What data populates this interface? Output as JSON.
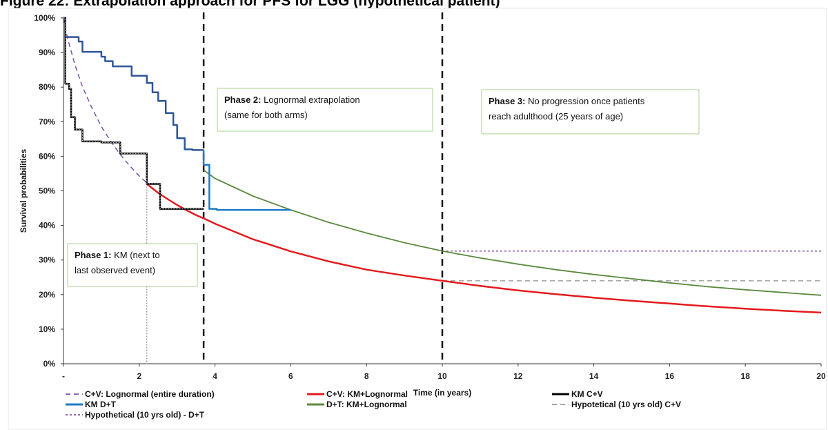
{
  "figure_title": "Figure 22: Extrapolation approach for PFS for LGG (hypothetical patient)",
  "chart_data": {
    "type": "line",
    "xlabel": "Time (in years)",
    "ylabel": "Survival probabilities",
    "xlim": [
      0,
      20
    ],
    "ylim": [
      0,
      100
    ],
    "x_ticks": [
      "-",
      "2",
      "4",
      "6",
      "8",
      "10",
      "12",
      "14",
      "16",
      "18",
      "20"
    ],
    "y_ticks": [
      "0%",
      "10%",
      "20%",
      "30%",
      "40%",
      "50%",
      "60%",
      "70%",
      "80%",
      "90%",
      "100%"
    ],
    "grid": false,
    "legend_position": "bottom",
    "phase_boundaries": [
      3.7,
      10
    ],
    "annotations": [
      {
        "bold": "Phase 1:",
        "lines": [
          " KM (next to",
          "last observed event)"
        ]
      },
      {
        "bold": "Phase 2:",
        "lines": [
          " Lognormal extrapolation",
          "(same for both arms)"
        ]
      },
      {
        "bold": "Phase 3:",
        "lines": [
          " No progression once patients",
          "reach adulthood (25 years of age)"
        ]
      }
    ],
    "series": [
      {
        "name": "C+V: Lognormal (entire duration)",
        "color": "#7b52ab",
        "style": "dashed",
        "x": [
          0,
          0.1,
          0.3,
          0.5,
          0.75,
          1.0,
          1.25,
          1.5,
          1.75,
          2.0,
          2.2
        ],
        "y": [
          100,
          94.5,
          86.5,
          80.1,
          74.0,
          68.6,
          64.3,
          60.5,
          57.2,
          54.3,
          52.3
        ]
      },
      {
        "name": "KM D+T",
        "color": "#2f5597",
        "x": [
          0,
          0.05,
          0.05,
          0.4,
          0.4,
          0.5,
          0.5,
          1.0,
          1.0,
          1.1,
          1.1,
          1.3,
          1.3,
          1.5,
          1.5,
          1.8,
          1.8,
          2.0,
          2.0,
          2.2,
          2.2,
          2.35,
          2.35,
          2.5,
          2.5,
          2.7,
          2.7,
          2.9,
          2.9,
          3.0,
          3.0,
          3.2,
          3.2,
          3.4,
          3.4,
          3.7
        ],
        "y": [
          100,
          100,
          94.5,
          94.5,
          93.2,
          93.2,
          90.2,
          90.2,
          88.8,
          88.8,
          87.5,
          87.5,
          86.0,
          86.0,
          86.0,
          86.0,
          83.3,
          83.3,
          83.3,
          83.3,
          81.2,
          81.2,
          78.5,
          78.5,
          76.0,
          76.0,
          72.5,
          72.5,
          69.0,
          69.0,
          65.2,
          65.2,
          62.0,
          62.0,
          61.8,
          61.8
        ]
      },
      {
        "name": "KM D+T (tail)",
        "color": "#1c7ac6",
        "x": [
          3.7,
          3.7,
          3.85,
          3.85,
          4.05,
          4.05,
          6.0
        ],
        "y": [
          61.8,
          57.5,
          57.5,
          44.8,
          44.8,
          44.5,
          44.5
        ]
      },
      {
        "name": "C+V: KM+Lognormal",
        "color": "#e41a1c",
        "x": [
          2.2,
          2.5,
          2.75,
          3.0,
          3.25,
          3.5,
          3.75,
          4,
          5,
          6,
          7,
          8,
          9,
          10,
          11,
          12,
          13,
          14,
          15,
          16,
          17,
          18,
          19,
          20
        ],
        "y": [
          52.0,
          49.4,
          47.6,
          45.9,
          44.4,
          43.0,
          41.8,
          40.5,
          36.0,
          32.5,
          29.6,
          27.2,
          25.5,
          24.0,
          22.5,
          21.2,
          20.1,
          19.1,
          18.2,
          17.4,
          16.6,
          15.9,
          15.3,
          14.8
        ]
      },
      {
        "name": "KM C+V",
        "color": "#000000",
        "x": [
          0,
          0.05,
          0.05,
          0.15,
          0.15,
          0.2,
          0.2,
          0.3,
          0.3,
          0.5,
          0.5,
          1.0,
          1.0,
          1.5,
          1.5,
          2.2,
          2.2,
          2.55,
          2.55,
          3.7
        ],
        "y": [
          100,
          100,
          81.0,
          81.0,
          79.5,
          79.5,
          71.3,
          71.3,
          67.7,
          67.7,
          64.3,
          64.3,
          64.0,
          64.0,
          60.8,
          60.8,
          52.0,
          52.0,
          44.8,
          44.8
        ]
      },
      {
        "name": "D+T: KM+Lognormal",
        "color": "#5a8a3e",
        "x": [
          3.7,
          4,
          5,
          6,
          7,
          8,
          9,
          10,
          11,
          12,
          13,
          14,
          15,
          16,
          17,
          18,
          19,
          20
        ],
        "y": [
          56.0,
          53.6,
          48.5,
          44.5,
          40.9,
          37.8,
          35.0,
          32.6,
          30.6,
          28.8,
          27.2,
          25.8,
          24.6,
          23.4,
          22.3,
          21.4,
          20.6,
          19.8
        ]
      },
      {
        "name": "Hypotetical (10 yrs old) C+V",
        "color": "#999999",
        "style": "dashed",
        "x": [
          10,
          20
        ],
        "y": [
          24.0,
          24.0
        ]
      },
      {
        "name": "Hypothetical (10 yrs old) - D+T",
        "color": "#7b52ab",
        "style": "dotted",
        "x": [
          10,
          20
        ],
        "y": [
          32.6,
          32.6
        ]
      }
    ],
    "legend": [
      {
        "label": "C+V: Lognormal (entire duration)",
        "color": "#7b52ab",
        "style": "dashed"
      },
      {
        "label": "C+V: KM+Lognormal",
        "color": "#e41a1c",
        "style": "solid"
      },
      {
        "label": "KM C+V",
        "color": "#000000",
        "style": "solid"
      },
      {
        "label": "KM D+T",
        "color": "#1c7ac6",
        "style": "solid"
      },
      {
        "label": "D+T: KM+Lognormal",
        "color": "#5a8a3e",
        "style": "solid"
      },
      {
        "label": "Hypotetical (10 yrs old) C+V",
        "color": "#999999",
        "style": "dashed"
      },
      {
        "label": "Hypothetical (10 yrs old) - D+T",
        "color": "#7b52ab",
        "style": "dotted"
      }
    ]
  }
}
